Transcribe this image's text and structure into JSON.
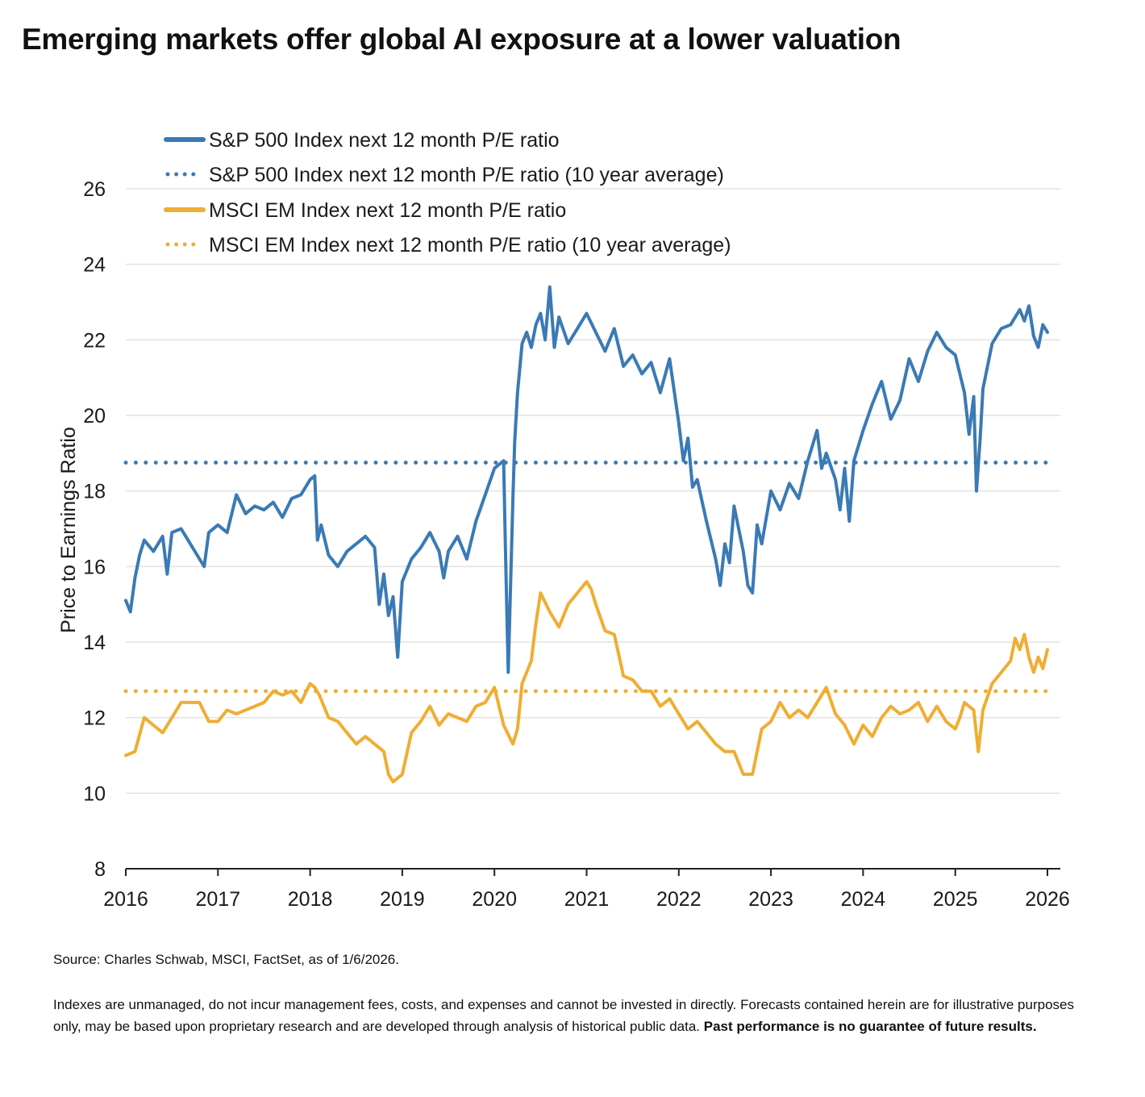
{
  "page": {
    "title": "Emerging markets offer global AI exposure at a lower valuation",
    "source": "Source: Charles Schwab, MSCI, FactSet, as of 1/6/2026.",
    "disclaimer": "Indexes are unmanaged, do not incur management fees, costs, and expenses and cannot be invested in directly. Forecasts contained herein are for illustrative purposes only, may be based upon proprietary research and are developed through analysis of historical public data.",
    "disclaimer_bold": "Past performance is no guarantee of future results."
  },
  "chart_data": {
    "type": "line",
    "title": "Emerging markets offer global AI exposure at a lower valuation",
    "ylabel": "Price to Earnings Ratio",
    "xlabel": "",
    "ylim": [
      8,
      26
    ],
    "yticks": [
      "8",
      "10",
      "12",
      "14",
      "16",
      "18",
      "20",
      "22",
      "24",
      "26"
    ],
    "xlim": [
      2016.0,
      2026.0
    ],
    "xticks": [
      "2016",
      "2017",
      "2018",
      "2019",
      "2020",
      "2021",
      "2022",
      "2023",
      "2024",
      "2025",
      "2026"
    ],
    "grid": "horizontal",
    "legend_position": "top-left",
    "colors": {
      "sp500": "#3a7ab5",
      "em": "#f0ad33"
    },
    "series": [
      {
        "name": "S&P 500 Index next 12 month P/E ratio",
        "style": "solid",
        "color": "#3a7ab5",
        "x": [
          2016.0,
          2016.05,
          2016.1,
          2016.15,
          2016.2,
          2016.3,
          2016.4,
          2016.45,
          2016.5,
          2016.6,
          2016.7,
          2016.8,
          2016.85,
          2016.9,
          2017.0,
          2017.1,
          2017.2,
          2017.3,
          2017.4,
          2017.5,
          2017.6,
          2017.7,
          2017.8,
          2017.9,
          2018.0,
          2018.05,
          2018.08,
          2018.12,
          2018.2,
          2018.3,
          2018.4,
          2018.5,
          2018.6,
          2018.7,
          2018.75,
          2018.8,
          2018.85,
          2018.9,
          2018.95,
          2019.0,
          2019.1,
          2019.2,
          2019.3,
          2019.4,
          2019.45,
          2019.5,
          2019.6,
          2019.7,
          2019.8,
          2019.9,
          2020.0,
          2020.1,
          2020.12,
          2020.15,
          2020.2,
          2020.22,
          2020.25,
          2020.3,
          2020.35,
          2020.4,
          2020.45,
          2020.5,
          2020.55,
          2020.6,
          2020.65,
          2020.7,
          2020.8,
          2020.9,
          2021.0,
          2021.1,
          2021.2,
          2021.3,
          2021.4,
          2021.5,
          2021.6,
          2021.7,
          2021.8,
          2021.9,
          2022.0,
          2022.05,
          2022.1,
          2022.15,
          2022.2,
          2022.3,
          2022.4,
          2022.45,
          2022.5,
          2022.55,
          2022.6,
          2022.7,
          2022.75,
          2022.8,
          2022.85,
          2022.9,
          2023.0,
          2023.1,
          2023.2,
          2023.3,
          2023.4,
          2023.5,
          2023.55,
          2023.6,
          2023.7,
          2023.75,
          2023.8,
          2023.85,
          2023.9,
          2024.0,
          2024.1,
          2024.2,
          2024.3,
          2024.4,
          2024.5,
          2024.6,
          2024.7,
          2024.8,
          2024.9,
          2025.0,
          2025.1,
          2025.15,
          2025.2,
          2025.23,
          2025.27,
          2025.3,
          2025.4,
          2025.5,
          2025.6,
          2025.7,
          2025.75,
          2025.8,
          2025.85,
          2025.9,
          2025.95,
          2026.0
        ],
        "values": [
          15.1,
          14.8,
          15.7,
          16.3,
          16.7,
          16.4,
          16.8,
          15.8,
          16.9,
          17.0,
          16.6,
          16.2,
          16.0,
          16.9,
          17.1,
          16.9,
          17.9,
          17.4,
          17.6,
          17.5,
          17.7,
          17.3,
          17.8,
          17.9,
          18.3,
          18.4,
          16.7,
          17.1,
          16.3,
          16.0,
          16.4,
          16.6,
          16.8,
          16.5,
          15.0,
          15.8,
          14.7,
          15.2,
          13.6,
          15.6,
          16.2,
          16.5,
          16.9,
          16.4,
          15.7,
          16.4,
          16.8,
          16.2,
          17.2,
          17.9,
          18.6,
          18.8,
          16.4,
          13.2,
          17.8,
          19.3,
          20.6,
          21.9,
          22.2,
          21.8,
          22.4,
          22.7,
          22.0,
          23.4,
          21.8,
          22.6,
          21.9,
          22.3,
          22.7,
          22.2,
          21.7,
          22.3,
          21.3,
          21.6,
          21.1,
          21.4,
          20.6,
          21.5,
          19.8,
          18.8,
          19.4,
          18.1,
          18.3,
          17.2,
          16.2,
          15.5,
          16.6,
          16.1,
          17.6,
          16.4,
          15.5,
          15.3,
          17.1,
          16.6,
          18.0,
          17.5,
          18.2,
          17.8,
          18.8,
          19.6,
          18.6,
          19.0,
          18.3,
          17.5,
          18.6,
          17.2,
          18.8,
          19.6,
          20.3,
          20.9,
          19.9,
          20.4,
          21.5,
          20.9,
          21.7,
          22.2,
          21.8,
          21.6,
          20.6,
          19.5,
          20.5,
          18.0,
          19.4,
          20.7,
          21.9,
          22.3,
          22.4,
          22.8,
          22.5,
          22.9,
          22.1,
          21.8,
          22.4,
          22.2
        ]
      },
      {
        "name": "S&P 500 Index next 12 month P/E ratio (10 year average)",
        "style": "dotted",
        "color": "#3a7ab5",
        "x": [
          2016.0,
          2026.0
        ],
        "values": [
          18.75,
          18.75
        ]
      },
      {
        "name": "MSCI EM Index next 12 month P/E ratio",
        "style": "solid",
        "color": "#f0ad33",
        "x": [
          2016.0,
          2016.1,
          2016.2,
          2016.3,
          2016.4,
          2016.5,
          2016.6,
          2016.7,
          2016.8,
          2016.9,
          2017.0,
          2017.1,
          2017.2,
          2017.3,
          2017.4,
          2017.5,
          2017.6,
          2017.7,
          2017.8,
          2017.9,
          2018.0,
          2018.05,
          2018.1,
          2018.2,
          2018.3,
          2018.4,
          2018.5,
          2018.6,
          2018.7,
          2018.8,
          2018.85,
          2018.9,
          2019.0,
          2019.1,
          2019.2,
          2019.3,
          2019.4,
          2019.5,
          2019.6,
          2019.7,
          2019.8,
          2019.9,
          2020.0,
          2020.1,
          2020.2,
          2020.25,
          2020.3,
          2020.4,
          2020.45,
          2020.5,
          2020.6,
          2020.7,
          2020.8,
          2020.9,
          2021.0,
          2021.05,
          2021.1,
          2021.2,
          2021.3,
          2021.4,
          2021.5,
          2021.6,
          2021.7,
          2021.8,
          2021.9,
          2022.0,
          2022.1,
          2022.2,
          2022.3,
          2022.4,
          2022.5,
          2022.6,
          2022.7,
          2022.8,
          2022.9,
          2023.0,
          2023.1,
          2023.2,
          2023.3,
          2023.4,
          2023.5,
          2023.6,
          2023.7,
          2023.8,
          2023.9,
          2024.0,
          2024.1,
          2024.2,
          2024.3,
          2024.4,
          2024.5,
          2024.6,
          2024.7,
          2024.8,
          2024.9,
          2025.0,
          2025.05,
          2025.1,
          2025.2,
          2025.25,
          2025.3,
          2025.4,
          2025.5,
          2025.6,
          2025.65,
          2025.7,
          2025.75,
          2025.8,
          2025.85,
          2025.9,
          2025.95,
          2026.0
        ],
        "values": [
          11.0,
          11.1,
          12.0,
          11.8,
          11.6,
          12.0,
          12.4,
          12.4,
          12.4,
          11.9,
          11.9,
          12.2,
          12.1,
          12.2,
          12.3,
          12.4,
          12.7,
          12.6,
          12.7,
          12.4,
          12.9,
          12.8,
          12.6,
          12.0,
          11.9,
          11.6,
          11.3,
          11.5,
          11.3,
          11.1,
          10.5,
          10.3,
          10.5,
          11.6,
          11.9,
          12.3,
          11.8,
          12.1,
          12.0,
          11.9,
          12.3,
          12.4,
          12.8,
          11.8,
          11.3,
          11.7,
          12.9,
          13.5,
          14.5,
          15.3,
          14.8,
          14.4,
          15.0,
          15.3,
          15.6,
          15.4,
          15.0,
          14.3,
          14.2,
          13.1,
          13.0,
          12.7,
          12.7,
          12.3,
          12.5,
          12.1,
          11.7,
          11.9,
          11.6,
          11.3,
          11.1,
          11.1,
          10.5,
          10.5,
          11.7,
          11.9,
          12.4,
          12.0,
          12.2,
          12.0,
          12.4,
          12.8,
          12.1,
          11.8,
          11.3,
          11.8,
          11.5,
          12.0,
          12.3,
          12.1,
          12.2,
          12.4,
          11.9,
          12.3,
          11.9,
          11.7,
          12.0,
          12.4,
          12.2,
          11.1,
          12.2,
          12.9,
          13.2,
          13.5,
          14.1,
          13.8,
          14.2,
          13.6,
          13.2,
          13.6,
          13.3,
          13.8
        ]
      },
      {
        "name": "MSCI EM Index next 12 month P/E ratio (10 year average)",
        "style": "dotted",
        "color": "#f0ad33",
        "x": [
          2016.0,
          2026.0
        ],
        "values": [
          12.7,
          12.7
        ]
      }
    ]
  }
}
